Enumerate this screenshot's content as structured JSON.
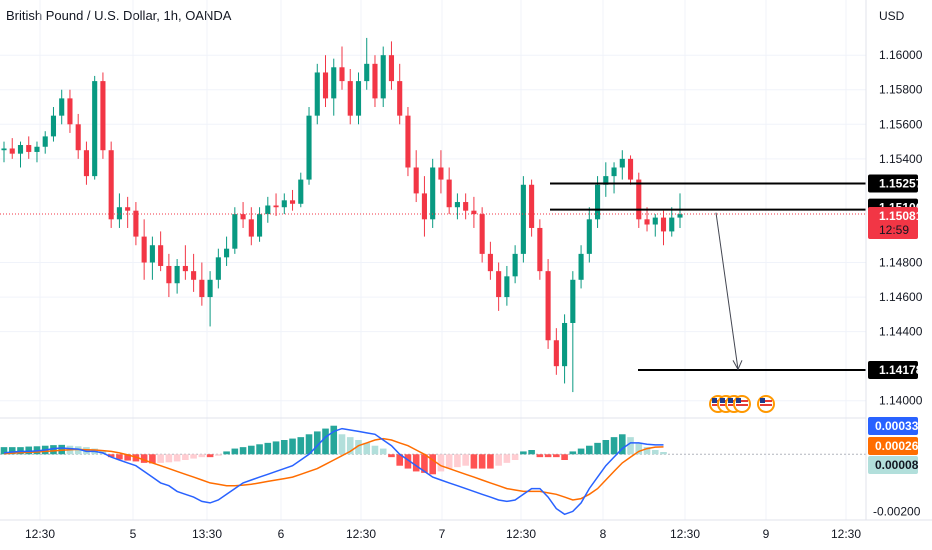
{
  "header": {
    "title": "British Pound / U.S. Dollar, 1h, OANDA"
  },
  "colors": {
    "up": "#089981",
    "down": "#f23645",
    "macd": "#2962ff",
    "signal": "#ff6d00",
    "hist_up_strong": "#26a69a",
    "hist_up_weak": "#b2dfdb",
    "hist_down_strong": "#ff5252",
    "hist_down_weak": "#ffcdd2",
    "grid": "#f0f3fa",
    "text": "#131722"
  },
  "chart_data": [
    {
      "type": "candlestick",
      "title": "British Pound / U.S. Dollar, 1h, OANDA",
      "yunit": "USD",
      "ylim": [
        1.139,
        1.1625
      ],
      "y_ticks": [
        "1.16000",
        "1.15800",
        "1.15600",
        "1.15400",
        "1.14800",
        "1.14600",
        "1.14400",
        "1.14000"
      ],
      "x_ticks": [
        "12:30",
        "5",
        "13:30",
        "6",
        "12:30",
        "7",
        "12:30",
        "8",
        "12:30",
        "9",
        "12:30"
      ],
      "price_levels": [
        1.15257,
        1.15106,
        1.14178
      ],
      "current_price": {
        "value": "1.15081",
        "countdown": "12:59"
      },
      "projection": {
        "from": 1.151,
        "to": 1.1417
      },
      "candles_ohlc": [
        [
          1.1545,
          1.155,
          1.1538,
          1.1546
        ],
        [
          1.1546,
          1.1552,
          1.154,
          1.1543
        ],
        [
          1.1543,
          1.155,
          1.1535,
          1.1548
        ],
        [
          1.1548,
          1.1553,
          1.154,
          1.1544
        ],
        [
          1.1544,
          1.155,
          1.1538,
          1.1547
        ],
        [
          1.1547,
          1.1556,
          1.1543,
          1.1553
        ],
        [
          1.1553,
          1.157,
          1.155,
          1.1565
        ],
        [
          1.1565,
          1.158,
          1.156,
          1.1575
        ],
        [
          1.1575,
          1.158,
          1.1555,
          1.156
        ],
        [
          1.156,
          1.1566,
          1.154,
          1.1545
        ],
        [
          1.1545,
          1.155,
          1.1525,
          1.153
        ],
        [
          1.153,
          1.1588,
          1.1528,
          1.1585
        ],
        [
          1.1585,
          1.159,
          1.154,
          1.1545
        ],
        [
          1.1545,
          1.155,
          1.15,
          1.1505
        ],
        [
          1.1505,
          1.152,
          1.15,
          1.1512
        ],
        [
          1.1512,
          1.1518,
          1.15,
          1.151
        ],
        [
          1.151,
          1.1515,
          1.149,
          1.1495
        ],
        [
          1.1495,
          1.1505,
          1.147,
          1.148
        ],
        [
          1.148,
          1.1495,
          1.147,
          1.149
        ],
        [
          1.149,
          1.1498,
          1.1475,
          1.1478
        ],
        [
          1.1478,
          1.1485,
          1.146,
          1.1468
        ],
        [
          1.1468,
          1.1482,
          1.1462,
          1.1478
        ],
        [
          1.1478,
          1.149,
          1.147,
          1.1475
        ],
        [
          1.1475,
          1.1485,
          1.1463,
          1.147
        ],
        [
          1.147,
          1.148,
          1.1455,
          1.146
        ],
        [
          1.146,
          1.1475,
          1.1443,
          1.147
        ],
        [
          1.147,
          1.1488,
          1.1465,
          1.1483
        ],
        [
          1.1483,
          1.1495,
          1.1478,
          1.1488
        ],
        [
          1.1488,
          1.1512,
          1.1485,
          1.1508
        ],
        [
          1.1508,
          1.1515,
          1.15,
          1.1505
        ],
        [
          1.1505,
          1.1512,
          1.149,
          1.1495
        ],
        [
          1.1495,
          1.1512,
          1.1492,
          1.1508
        ],
        [
          1.1508,
          1.1518,
          1.1503,
          1.1513
        ],
        [
          1.1513,
          1.152,
          1.1507,
          1.1512
        ],
        [
          1.1512,
          1.152,
          1.1508,
          1.1516
        ],
        [
          1.1516,
          1.1522,
          1.151,
          1.1514
        ],
        [
          1.1514,
          1.1532,
          1.1512,
          1.1528
        ],
        [
          1.1528,
          1.157,
          1.1525,
          1.1565
        ],
        [
          1.1565,
          1.1595,
          1.156,
          1.159
        ],
        [
          1.159,
          1.16,
          1.157,
          1.1575
        ],
        [
          1.1575,
          1.1598,
          1.1565,
          1.1593
        ],
        [
          1.1593,
          1.1605,
          1.158,
          1.1585
        ],
        [
          1.1585,
          1.1592,
          1.156,
          1.1565
        ],
        [
          1.1565,
          1.159,
          1.156,
          1.1585
        ],
        [
          1.1585,
          1.161,
          1.158,
          1.1595
        ],
        [
          1.1595,
          1.16,
          1.157,
          1.1575
        ],
        [
          1.1575,
          1.1605,
          1.157,
          1.16
        ],
        [
          1.16,
          1.1608,
          1.158,
          1.1585
        ],
        [
          1.1585,
          1.1595,
          1.156,
          1.1565
        ],
        [
          1.1565,
          1.157,
          1.153,
          1.1535
        ],
        [
          1.1535,
          1.1545,
          1.1515,
          1.152
        ],
        [
          1.152,
          1.153,
          1.1495,
          1.1505
        ],
        [
          1.1505,
          1.154,
          1.15,
          1.1535
        ],
        [
          1.1535,
          1.1545,
          1.152,
          1.1528
        ],
        [
          1.1528,
          1.1535,
          1.1508,
          1.1512
        ],
        [
          1.1512,
          1.152,
          1.1505,
          1.1515
        ],
        [
          1.1515,
          1.152,
          1.1505,
          1.151
        ],
        [
          1.151,
          1.1518,
          1.15,
          1.1508
        ],
        [
          1.1508,
          1.1512,
          1.148,
          1.1485
        ],
        [
          1.1485,
          1.1492,
          1.147,
          1.1475
        ],
        [
          1.1475,
          1.148,
          1.1452,
          1.146
        ],
        [
          1.146,
          1.1478,
          1.1455,
          1.1472
        ],
        [
          1.1472,
          1.149,
          1.1468,
          1.1485
        ],
        [
          1.1485,
          1.153,
          1.148,
          1.1525
        ],
        [
          1.1525,
          1.1528,
          1.1495,
          1.15
        ],
        [
          1.15,
          1.1505,
          1.147,
          1.1475
        ],
        [
          1.1475,
          1.1482,
          1.143,
          1.1435
        ],
        [
          1.1435,
          1.1442,
          1.1415,
          1.142
        ],
        [
          1.142,
          1.145,
          1.141,
          1.1445
        ],
        [
          1.1445,
          1.1475,
          1.1405,
          1.147
        ],
        [
          1.147,
          1.149,
          1.1465,
          1.1485
        ],
        [
          1.1485,
          1.1512,
          1.148,
          1.1505
        ],
        [
          1.1505,
          1.153,
          1.15,
          1.1525
        ],
        [
          1.1525,
          1.1538,
          1.1518,
          1.153
        ],
        [
          1.153,
          1.1538,
          1.152,
          1.1535
        ],
        [
          1.1535,
          1.1545,
          1.1528,
          1.154
        ],
        [
          1.154,
          1.1542,
          1.1525,
          1.1528
        ],
        [
          1.1528,
          1.1532,
          1.15,
          1.1505
        ],
        [
          1.1505,
          1.1512,
          1.1498,
          1.1502
        ],
        [
          1.1502,
          1.1508,
          1.1495,
          1.1506
        ],
        [
          1.1506,
          1.151,
          1.149,
          1.1498
        ],
        [
          1.1498,
          1.1512,
          1.1495,
          1.1506
        ],
        [
          1.1506,
          1.152,
          1.15,
          1.1508
        ]
      ]
    },
    {
      "type": "macd",
      "values": {
        "macd": "0.00033",
        "signal": "0.00026",
        "histogram": "0.00008"
      },
      "ylim": [
        -0.0023,
        0.0012
      ],
      "y_ticks": [
        "-0.00200"
      ],
      "macd_line": [
        5e-05,
        8e-05,
        0.0001,
        0.0001,
        0.00012,
        0.00015,
        0.0002,
        0.00022,
        0.0002,
        0.00018,
        0.0001,
        0.0001,
        5e-05,
        -0.0001,
        -0.0002,
        -0.0003,
        -0.0004,
        -0.0006,
        -0.0008,
        -0.001,
        -0.0011,
        -0.0013,
        -0.0014,
        -0.0015,
        -0.00165,
        -0.0017,
        -0.0016,
        -0.0014,
        -0.0012,
        -0.001,
        -0.0009,
        -0.0008,
        -0.0007,
        -0.0006,
        -0.0005,
        -0.0004,
        -0.0002,
        0.0,
        0.0003,
        0.0006,
        0.0008,
        0.0009,
        0.00085,
        0.0008,
        0.00075,
        0.0007,
        0.0005,
        0.0003,
        0.0,
        -0.0002,
        -0.0004,
        -0.0006,
        -0.0008,
        -0.0009,
        -0.001,
        -0.0011,
        -0.0012,
        -0.0013,
        -0.0014,
        -0.0015,
        -0.0016,
        -0.00165,
        -0.0016,
        -0.0014,
        -0.0012,
        -0.0012,
        -0.0015,
        -0.0019,
        -0.0021,
        -0.002,
        -0.0017,
        -0.0012,
        -0.0008,
        -0.0004,
        -0.0001,
        0.0002,
        0.0004,
        0.0004,
        0.00035,
        0.00033,
        0.00033
      ],
      "signal_line": [
        2e-05,
        4e-05,
        6e-05,
        7e-05,
        8e-05,
        0.0001,
        0.00012,
        0.00014,
        0.00016,
        0.00017,
        0.00016,
        0.00015,
        0.00013,
        0.0001,
        5e-05,
        -2e-05,
        -0.0001,
        -0.0002,
        -0.0003,
        -0.0004,
        -0.0005,
        -0.0006,
        -0.0007,
        -0.0008,
        -0.0009,
        -0.001,
        -0.00105,
        -0.0011,
        -0.0011,
        -0.00108,
        -0.00105,
        -0.001,
        -0.00095,
        -0.0009,
        -0.00085,
        -0.0008,
        -0.0007,
        -0.0006,
        -0.0005,
        -0.00035,
        -0.0002,
        -5e-05,
        0.0001,
        0.0003,
        0.0004,
        0.0005,
        0.00055,
        0.0005,
        0.0004,
        0.0003,
        0.00015,
        0.0,
        -0.0002,
        -0.0004,
        -0.0005,
        -0.0006,
        -0.0007,
        -0.0008,
        -0.0009,
        -0.001,
        -0.0011,
        -0.0012,
        -0.00125,
        -0.0013,
        -0.0013,
        -0.0013,
        -0.00135,
        -0.0014,
        -0.0015,
        -0.0016,
        -0.00155,
        -0.0014,
        -0.0012,
        -0.0009,
        -0.0006,
        -0.0003,
        -0.0001,
        0.0001,
        0.0002,
        0.00025,
        0.00026
      ],
      "histogram": [
        0.00025,
        0.00025,
        0.00025,
        0.00027,
        0.00028,
        0.0003,
        0.00032,
        0.00033,
        0.0003,
        0.00028,
        0.00025,
        0.0002,
        0.00012,
        -0.0001,
        -0.00018,
        -0.00022,
        -0.00025,
        -0.0003,
        -0.00032,
        -0.0003,
        -0.00028,
        -0.00025,
        -0.0002,
        -0.00015,
        -0.0001,
        -0.0001,
        -5e-05,
        0.0001,
        0.0002,
        0.00025,
        0.0003,
        0.00035,
        0.0004,
        0.00045,
        0.0005,
        0.00055,
        0.0006,
        0.0007,
        0.0008,
        0.0009,
        0.001,
        0.0007,
        0.0006,
        0.0005,
        0.0004,
        0.0003,
        0.0002,
        -0.0001,
        -0.0004,
        -0.0005,
        -0.0006,
        -0.00065,
        -0.0007,
        -0.0006,
        -0.0005,
        -0.00045,
        -0.0004,
        -0.0005,
        -0.0005,
        -0.0005,
        -0.0004,
        -0.0003,
        -0.0002,
        0.0001,
        0.00015,
        -0.0001,
        -0.0001,
        -0.0001,
        -0.0002,
        0.0001,
        0.0002,
        0.0003,
        0.0004,
        0.0005,
        0.0006,
        0.0007,
        0.0006,
        0.0004,
        0.00025,
        0.00015,
        8e-05
      ]
    }
  ]
}
